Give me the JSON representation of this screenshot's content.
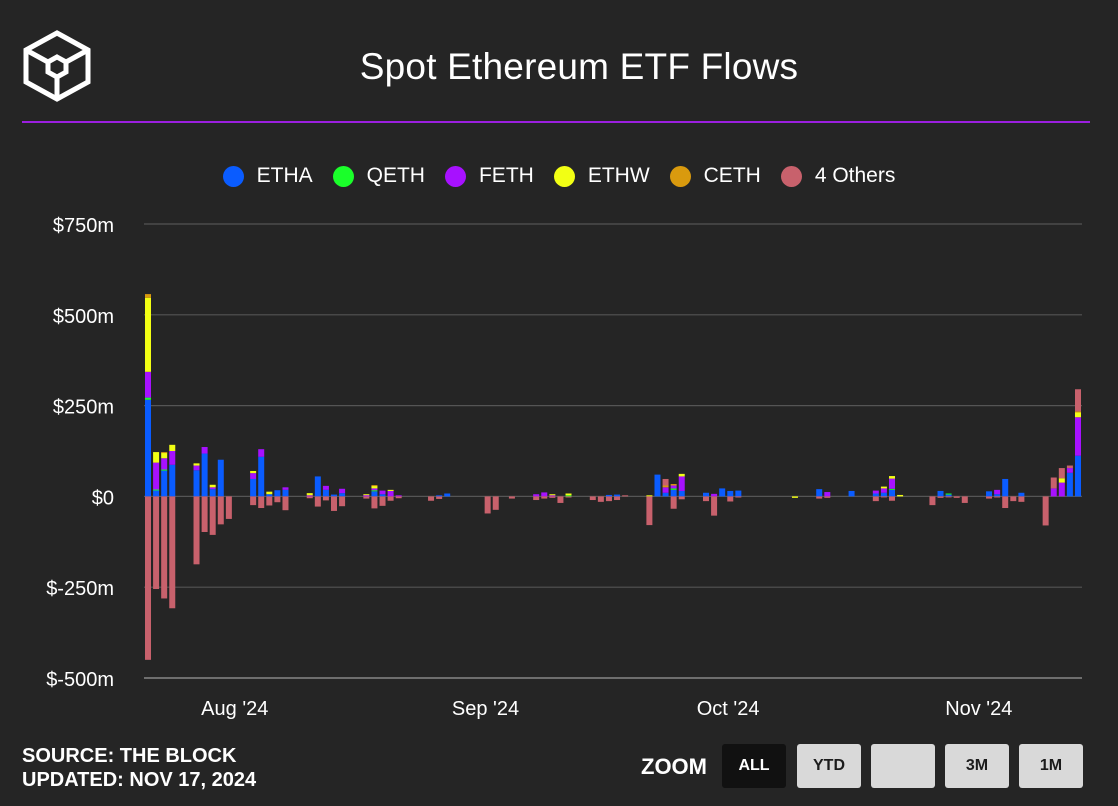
{
  "title": "Spot Ethereum ETF Flows",
  "colors": {
    "accent": "#9b1fe0",
    "grid": "#555555",
    "background": "#252525"
  },
  "legend": [
    {
      "name": "ETHA",
      "color": "#0a5cff"
    },
    {
      "name": "QETH",
      "color": "#1aff2a"
    },
    {
      "name": "FETH",
      "color": "#a711ff"
    },
    {
      "name": "ETHW",
      "color": "#f2ff14"
    },
    {
      "name": "CETH",
      "color": "#d99a0e"
    },
    {
      "name": "4 Others",
      "color": "#c8616c"
    }
  ],
  "footer": {
    "source": "SOURCE: THE BLOCK",
    "updated": "UPDATED: NOV 17, 2024"
  },
  "zoom": {
    "label": "ZOOM",
    "buttons": [
      "ALL",
      "YTD",
      "",
      "3M",
      "1M"
    ],
    "active": "ALL"
  },
  "chart_data": {
    "type": "bar",
    "stacked": true,
    "ylim": [
      -500,
      750
    ],
    "yticks": [
      750,
      500,
      250,
      0,
      -250,
      -500
    ],
    "ytick_labels": [
      "$750m",
      "$500m",
      "$250m",
      "$0",
      "$-250m",
      "$-500m"
    ],
    "x_range": [
      "2024-07-23",
      "2024-11-15"
    ],
    "xticks": [
      {
        "date": "2024-08-01",
        "label": "Aug '24"
      },
      {
        "date": "2024-09-01",
        "label": "Sep '24"
      },
      {
        "date": "2024-10-01",
        "label": "Oct '24"
      },
      {
        "date": "2024-11-01",
        "label": "Nov '24"
      }
    ],
    "grid": true,
    "legend_position": "top-center",
    "series_order": [
      "ETHA",
      "QETH",
      "FETH",
      "ETHW",
      "CETH",
      "4 Others"
    ],
    "points": [
      {
        "date": "2024-07-23",
        "ETHA": 266,
        "QETH": 6,
        "FETH": 71,
        "ETHW": 204,
        "CETH": 10,
        "4 Others": -450
      },
      {
        "date": "2024-07-24",
        "ETHA": 17,
        "QETH": 2,
        "FETH": 74,
        "ETHW": 29,
        "CETH": 0,
        "4 Others": -255
      },
      {
        "date": "2024-07-25",
        "ETHA": 71,
        "QETH": 3,
        "FETH": 31,
        "ETHW": 15,
        "CETH": 2,
        "4 Others": -281
      },
      {
        "date": "2024-07-26",
        "ETHA": 87,
        "QETH": 0,
        "FETH": 38,
        "ETHW": 17,
        "CETH": 0,
        "4 Others": -308
      },
      {
        "date": "2024-07-29",
        "ETHA": 72,
        "QETH": 0,
        "FETH": 13,
        "ETHW": 6,
        "CETH": 0,
        "4 Others": -187
      },
      {
        "date": "2024-07-30",
        "ETHA": 118,
        "QETH": 0,
        "FETH": 18,
        "ETHW": 0,
        "CETH": 0,
        "4 Others": -98
      },
      {
        "date": "2024-07-31",
        "ETHA": 20,
        "QETH": 0,
        "FETH": 5,
        "ETHW": 7,
        "CETH": 0,
        "4 Others": -106
      },
      {
        "date": "2024-08-01",
        "ETHA": 101,
        "QETH": 0,
        "FETH": 0,
        "ETHW": 0,
        "CETH": 0,
        "4 Others": -77
      },
      {
        "date": "2024-08-02",
        "ETHA": 0,
        "QETH": 0,
        "FETH": 0,
        "ETHW": 0,
        "CETH": 0,
        "4 Others": -62
      },
      {
        "date": "2024-08-05",
        "ETHA": 48,
        "QETH": 0,
        "FETH": 16,
        "ETHW": 6,
        "CETH": 0,
        "4 Others": -24
      },
      {
        "date": "2024-08-06",
        "ETHA": 109,
        "QETH": 0,
        "FETH": 21,
        "ETHW": 0,
        "CETH": 0,
        "4 Others": -32
      },
      {
        "date": "2024-08-07",
        "ETHA": 6,
        "QETH": 0,
        "FETH": 0,
        "ETHW": 7,
        "CETH": 0,
        "4 Others": -25
      },
      {
        "date": "2024-08-08",
        "ETHA": 17,
        "QETH": 0,
        "FETH": 0,
        "ETHW": 0,
        "CETH": 0,
        "4 Others": -16
      },
      {
        "date": "2024-08-09",
        "ETHA": 18,
        "QETH": 0,
        "FETH": 7,
        "ETHW": 0,
        "CETH": 0,
        "4 Others": -38
      },
      {
        "date": "2024-08-12",
        "ETHA": 0,
        "QETH": 0,
        "FETH": 3,
        "ETHW": 6,
        "CETH": 0,
        "4 Others": -5
      },
      {
        "date": "2024-08-13",
        "ETHA": 55,
        "QETH": 0,
        "FETH": 0,
        "ETHW": 0,
        "CETH": 0,
        "4 Others": -28
      },
      {
        "date": "2024-08-14",
        "ETHA": 18,
        "QETH": 0,
        "FETH": 11,
        "ETHW": 0,
        "CETH": 0,
        "4 Others": -11
      },
      {
        "date": "2024-08-15",
        "ETHA": 5,
        "QETH": 0,
        "FETH": 0,
        "ETHW": 0,
        "CETH": 0,
        "4 Others": -40
      },
      {
        "date": "2024-08-16",
        "ETHA": 9,
        "QETH": 0,
        "FETH": 12,
        "ETHW": 0,
        "CETH": 0,
        "4 Others": -27
      },
      {
        "date": "2024-08-19",
        "ETHA": 0,
        "QETH": 0,
        "FETH": 4,
        "ETHW": 2,
        "CETH": 0,
        "4 Others": -6
      },
      {
        "date": "2024-08-20",
        "ETHA": 14,
        "QETH": 3,
        "FETH": 5,
        "ETHW": 7,
        "CETH": 2,
        "4 Others": -33
      },
      {
        "date": "2024-08-21",
        "ETHA": 6,
        "QETH": 0,
        "FETH": 10,
        "ETHW": 0,
        "CETH": 0,
        "4 Others": -26
      },
      {
        "date": "2024-08-22",
        "ETHA": 0,
        "QETH": 0,
        "FETH": 15,
        "ETHW": 3,
        "CETH": 0,
        "4 Others": -12
      },
      {
        "date": "2024-08-23",
        "ETHA": 0,
        "QETH": 0,
        "FETH": 3,
        "ETHW": 0,
        "CETH": 0,
        "4 Others": -5
      },
      {
        "date": "2024-08-27",
        "ETHA": 0,
        "QETH": 0,
        "FETH": 0,
        "ETHW": 0,
        "CETH": 0,
        "4 Others": -12
      },
      {
        "date": "2024-08-28",
        "ETHA": 3,
        "QETH": 0,
        "FETH": 0,
        "ETHW": 0,
        "CETH": 0,
        "4 Others": -7
      },
      {
        "date": "2024-08-29",
        "ETHA": 8,
        "QETH": 0,
        "FETH": 0,
        "ETHW": 0,
        "CETH": 0,
        "4 Others": 0
      },
      {
        "date": "2024-09-03",
        "ETHA": 0,
        "QETH": 0,
        "FETH": 0,
        "ETHW": 0,
        "CETH": 0,
        "4 Others": -47
      },
      {
        "date": "2024-09-04",
        "ETHA": 0,
        "QETH": 0,
        "FETH": 0,
        "ETHW": 0,
        "CETH": 0,
        "4 Others": -37
      },
      {
        "date": "2024-09-06",
        "ETHA": 0,
        "QETH": 0,
        "FETH": 0,
        "ETHW": 0,
        "CETH": 0,
        "4 Others": -6
      },
      {
        "date": "2024-09-09",
        "ETHA": 0,
        "QETH": 0,
        "FETH": 6,
        "ETHW": 0,
        "CETH": 0,
        "4 Others": -10
      },
      {
        "date": "2024-09-10",
        "ETHA": 0,
        "QETH": 0,
        "FETH": 11,
        "ETHW": 0,
        "CETH": 0,
        "4 Others": -6
      },
      {
        "date": "2024-09-11",
        "ETHA": 0,
        "QETH": 0,
        "FETH": 3,
        "ETHW": 3,
        "CETH": 0,
        "4 Others": -4
      },
      {
        "date": "2024-09-12",
        "ETHA": 0,
        "QETH": 0,
        "FETH": 0,
        "ETHW": 0,
        "CETH": 0,
        "4 Others": -18
      },
      {
        "date": "2024-09-13",
        "ETHA": 0,
        "QETH": 3,
        "FETH": 0,
        "ETHW": 5,
        "CETH": 0,
        "4 Others": -3
      },
      {
        "date": "2024-09-16",
        "ETHA": 0,
        "QETH": 0,
        "FETH": 0,
        "ETHW": 0,
        "CETH": 0,
        "4 Others": -10
      },
      {
        "date": "2024-09-17",
        "ETHA": 0,
        "QETH": 0,
        "FETH": 0,
        "ETHW": 0,
        "CETH": 0,
        "4 Others": -15
      },
      {
        "date": "2024-09-18",
        "ETHA": 4,
        "QETH": 0,
        "FETH": 0,
        "ETHW": 0,
        "CETH": 0,
        "4 Others": -13
      },
      {
        "date": "2024-09-19",
        "ETHA": 5,
        "QETH": 0,
        "FETH": 0,
        "ETHW": 0,
        "CETH": 0,
        "4 Others": -10
      },
      {
        "date": "2024-09-20",
        "ETHA": 0,
        "QETH": 0,
        "FETH": 0,
        "ETHW": 0,
        "CETH": 0,
        "4 Others": 3
      },
      {
        "date": "2024-09-23",
        "ETHA": 0,
        "QETH": 0,
        "FETH": 0,
        "ETHW": 3,
        "CETH": 0,
        "4 Others": -79
      },
      {
        "date": "2024-09-24",
        "ETHA": 60,
        "QETH": 0,
        "FETH": 0,
        "ETHW": 0,
        "CETH": 0,
        "4 Others": 0
      },
      {
        "date": "2024-09-25",
        "ETHA": 10,
        "QETH": 0,
        "FETH": 15,
        "ETHW": 0,
        "CETH": 5,
        "4 Others": 18
      },
      {
        "date": "2024-09-26",
        "ETHA": 18,
        "QETH": 4,
        "FETH": 8,
        "ETHW": 0,
        "CETH": 4,
        "4 Others": -34
      },
      {
        "date": "2024-09-27",
        "ETHA": 15,
        "QETH": 0,
        "FETH": 40,
        "ETHW": 7,
        "CETH": 0,
        "4 Others": -8
      },
      {
        "date": "2024-09-30",
        "ETHA": 10,
        "QETH": 0,
        "FETH": 0,
        "ETHW": 0,
        "CETH": 0,
        "4 Others": -13
      },
      {
        "date": "2024-10-01",
        "ETHA": 0,
        "QETH": 0,
        "FETH": 7,
        "ETHW": 0,
        "CETH": 0,
        "4 Others": -53
      },
      {
        "date": "2024-10-02",
        "ETHA": 22,
        "QETH": 0,
        "FETH": 0,
        "ETHW": 0,
        "CETH": 0,
        "4 Others": 0
      },
      {
        "date": "2024-10-03",
        "ETHA": 15,
        "QETH": 0,
        "FETH": 0,
        "ETHW": 0,
        "CETH": 0,
        "4 Others": -14
      },
      {
        "date": "2024-10-04",
        "ETHA": 16,
        "QETH": 0,
        "FETH": 0,
        "ETHW": 0,
        "CETH": 0,
        "4 Others": -3
      },
      {
        "date": "2024-10-08",
        "ETHA": 0,
        "QETH": 0,
        "FETH": 0,
        "ETHW": 0,
        "CETH": 0,
        "4 Others": 0
      },
      {
        "date": "2024-10-09",
        "ETHA": 0,
        "QETH": 0,
        "FETH": 0,
        "ETHW": 0,
        "CETH": 0,
        "4 Others": 0
      },
      {
        "date": "2024-10-11",
        "ETHA": 0,
        "QETH": 0,
        "FETH": 0,
        "ETHW": -4,
        "CETH": 0,
        "4 Others": 0
      },
      {
        "date": "2024-10-14",
        "ETHA": 20,
        "QETH": 0,
        "FETH": 0,
        "ETHW": 0,
        "CETH": 0,
        "4 Others": -6
      },
      {
        "date": "2024-10-15",
        "ETHA": 0,
        "QETH": 0,
        "FETH": 12,
        "ETHW": 0,
        "CETH": 0,
        "4 Others": -4
      },
      {
        "date": "2024-10-18",
        "ETHA": 15,
        "QETH": 0,
        "FETH": 0,
        "ETHW": 0,
        "CETH": 0,
        "4 Others": 0
      },
      {
        "date": "2024-10-21",
        "ETHA": 8,
        "QETH": 0,
        "FETH": 8,
        "ETHW": 0,
        "CETH": 0,
        "4 Others": -13
      },
      {
        "date": "2024-10-22",
        "ETHA": 10,
        "QETH": 0,
        "FETH": 12,
        "ETHW": 5,
        "CETH": 0,
        "4 Others": -2
      },
      {
        "date": "2024-10-23",
        "ETHA": 18,
        "QETH": 3,
        "FETH": 28,
        "ETHW": 7,
        "CETH": 0,
        "4 Others": -12
      },
      {
        "date": "2024-10-24",
        "ETHA": 0,
        "QETH": 0,
        "FETH": 0,
        "ETHW": 4,
        "CETH": 0,
        "4 Others": 0
      },
      {
        "date": "2024-10-28",
        "ETHA": 0,
        "QETH": 0,
        "FETH": 0,
        "ETHW": 0,
        "CETH": 0,
        "4 Others": -24
      },
      {
        "date": "2024-10-29",
        "ETHA": 15,
        "QETH": 0,
        "FETH": 0,
        "ETHW": 0,
        "CETH": 0,
        "4 Others": -4
      },
      {
        "date": "2024-10-30",
        "ETHA": 5,
        "QETH": 3,
        "FETH": 0,
        "ETHW": 0,
        "CETH": 0,
        "4 Others": -2
      },
      {
        "date": "2024-10-31",
        "ETHA": 0,
        "QETH": 0,
        "FETH": 0,
        "ETHW": 0,
        "CETH": 0,
        "4 Others": -4
      },
      {
        "date": "2024-11-01",
        "ETHA": 0,
        "QETH": 0,
        "FETH": 0,
        "ETHW": 0,
        "CETH": 0,
        "4 Others": -18
      },
      {
        "date": "2024-11-04",
        "ETHA": 14,
        "QETH": 0,
        "FETH": 0,
        "ETHW": 0,
        "CETH": 0,
        "4 Others": -6
      },
      {
        "date": "2024-11-05",
        "ETHA": 6,
        "QETH": 0,
        "FETH": 12,
        "ETHW": 0,
        "CETH": 0,
        "4 Others": -3
      },
      {
        "date": "2024-11-06",
        "ETHA": 48,
        "QETH": 0,
        "FETH": 0,
        "ETHW": 0,
        "CETH": 0,
        "4 Others": -32
      },
      {
        "date": "2024-11-07",
        "ETHA": 0,
        "QETH": 0,
        "FETH": 0,
        "ETHW": 0,
        "CETH": 0,
        "4 Others": -13
      },
      {
        "date": "2024-11-08",
        "ETHA": 10,
        "QETH": 0,
        "FETH": 0,
        "ETHW": 0,
        "CETH": 0,
        "4 Others": -15
      },
      {
        "date": "2024-11-11",
        "ETHA": 0,
        "QETH": 0,
        "FETH": 0,
        "ETHW": 0,
        "CETH": 0,
        "4 Others": -80
      },
      {
        "date": "2024-11-12",
        "ETHA": 0,
        "QETH": 0,
        "FETH": 22,
        "ETHW": 0,
        "CETH": 0,
        "4 Others": 30
      },
      {
        "date": "2024-11-13",
        "ETHA": 0,
        "QETH": 0,
        "FETH": 38,
        "ETHW": 12,
        "CETH": 0,
        "4 Others": 28
      },
      {
        "date": "2024-11-14",
        "ETHA": 65,
        "QETH": 0,
        "FETH": 13,
        "ETHW": 0,
        "CETH": 0,
        "4 Others": 7
      },
      {
        "date": "2024-11-15",
        "ETHA": 112,
        "QETH": 0,
        "FETH": 106,
        "ETHW": 13,
        "CETH": 3,
        "4 Others": 61
      }
    ]
  }
}
